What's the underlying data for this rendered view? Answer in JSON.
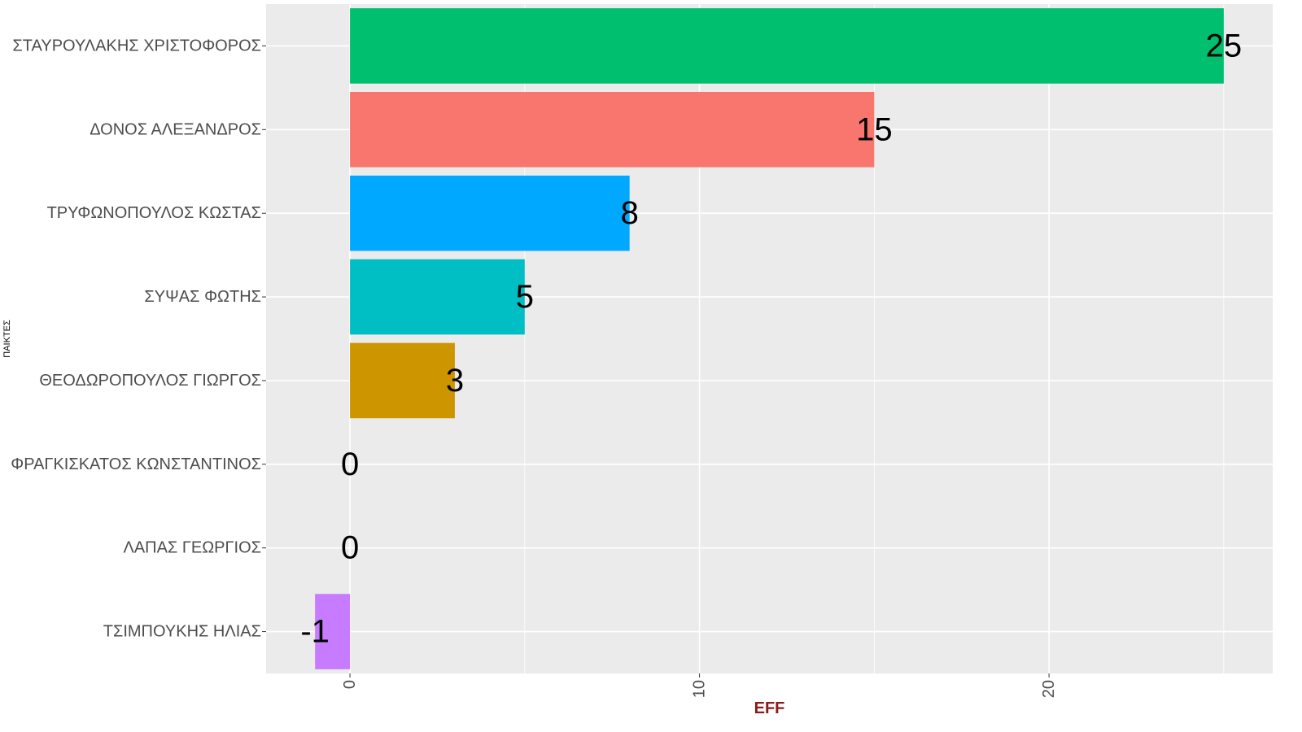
{
  "chart_data": {
    "type": "bar",
    "orientation": "horizontal",
    "categories": [
      "ΣΤΑΥΡΟΥΛΑΚΗΣ ΧΡΙΣΤΟΦΟΡΟΣ",
      "ΔΟΝΟΣ ΑΛΕΞΑΝΔΡΟΣ",
      "ΤΡΥΦΩΝΟΠΟΥΛΟΣ ΚΩΣΤΑΣ",
      "ΣΥΨΑΣ ΦΩΤΗΣ",
      "ΘΕΟΔΩΡΟΠΟΥΛΟΣ ΓΙΩΡΓΟΣ",
      "ΦΡΑΓΚΙΣΚΑΤΟΣ ΚΩΝΣΤΑΝΤΙΝΟΣ",
      "ΛΑΠΑΣ ΓΕΩΡΓΙΟΣ",
      "ΤΣΙΜΠΟΥΚΗΣ ΗΛΙΑΣ"
    ],
    "values": [
      25,
      15,
      8,
      5,
      3,
      0,
      0,
      -1
    ],
    "data_labels": [
      "25",
      "15",
      "8",
      "5",
      "3",
      "0",
      "0",
      "-1"
    ],
    "bar_colors": [
      "#00BF6F",
      "#F8766D",
      "#00A9FF",
      "#00BFC4",
      "#CD9600",
      "#7CAE00",
      "#C77CFF",
      "#C77CFF"
    ],
    "xlabel": "EFF",
    "ylabel": "ΠΑΙΚΤΕΣ",
    "xlim": [
      -2.4,
      26.4
    ],
    "x_ticks": [
      0,
      10,
      20
    ],
    "x_tick_labels": [
      "0",
      "10",
      "20"
    ],
    "grid": true,
    "legend": "none",
    "panel_background": "#EBEBEB",
    "grid_color": "#FFFFFF",
    "xlabel_color": "#8B1A1A"
  }
}
